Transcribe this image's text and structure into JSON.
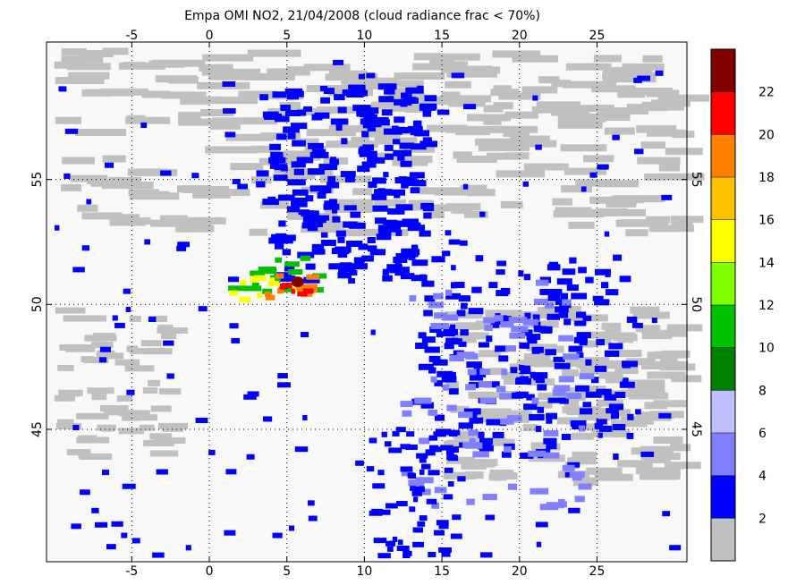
{
  "title": "Empa OMI NO2, 21/04/2008 (cloud radiance frac < 70%)",
  "map": {
    "xlim": [
      -10.5,
      30.8
    ],
    "ylim": [
      39.7,
      60.5
    ],
    "xticks": [
      -5,
      0,
      5,
      10,
      15,
      20,
      25
    ],
    "yticks": [
      45,
      50,
      55
    ]
  },
  "colorbar": {
    "lim": [
      0,
      24
    ],
    "ticks": [
      2,
      4,
      6,
      8,
      10,
      12,
      14,
      16,
      18,
      20,
      22
    ],
    "colors": [
      "#c0c0c0",
      "#0000ff",
      "#8080ff",
      "#c0c0ff",
      "#008000",
      "#00c000",
      "#80ff00",
      "#ffff00",
      "#ffc000",
      "#ff8000",
      "#ff0000",
      "#800000"
    ]
  }
}
